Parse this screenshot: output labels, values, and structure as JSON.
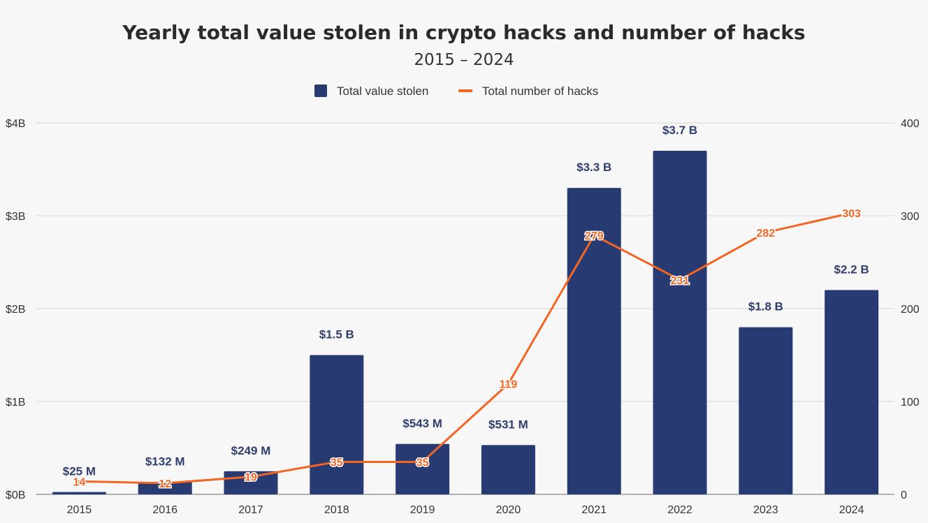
{
  "chart_data": {
    "type": "bar",
    "title": "Yearly total value stolen in crypto hacks and number of hacks",
    "subtitle": "2015 – 2024",
    "categories": [
      "2015",
      "2016",
      "2017",
      "2018",
      "2019",
      "2020",
      "2021",
      "2022",
      "2023",
      "2024"
    ],
    "series": [
      {
        "name": "Total value stolen",
        "type": "bar",
        "axis": "left",
        "values": [
          0.025,
          0.132,
          0.249,
          1.5,
          0.543,
          0.531,
          3.3,
          3.7,
          1.8,
          2.2
        ],
        "labels": [
          "$25  M",
          "$132  M",
          "$249  M",
          "$1.5 B",
          "$543  M",
          "$531  M",
          "$3.3 B",
          "$3.7 B",
          "$1.8 B",
          "$2.2 B"
        ]
      },
      {
        "name": "Total number of hacks",
        "type": "line",
        "axis": "right",
        "values": [
          14,
          12,
          19,
          35,
          35,
          119,
          279,
          231,
          282,
          303
        ],
        "labels": [
          "14",
          "12",
          "19",
          "35",
          "35",
          "119",
          "279",
          "231",
          "282",
          "303"
        ]
      }
    ],
    "y_left": {
      "ylim": [
        0,
        4
      ],
      "ticks": [
        0,
        1,
        2,
        3,
        4
      ],
      "tick_labels": [
        "$0B",
        "$1B",
        "$2B",
        "$3B",
        "$4B"
      ]
    },
    "y_right": {
      "ylim": [
        0,
        400
      ],
      "ticks": [
        0,
        100,
        200,
        300,
        400
      ],
      "tick_labels": [
        "0",
        "100",
        "200",
        "300",
        "400"
      ]
    },
    "xlabel": "",
    "grid": true,
    "legend": "top-center",
    "colors": {
      "bar": "#283a72",
      "line": "#f26522",
      "grid": "#d4d4d4",
      "background": "#f7f7f7"
    }
  }
}
